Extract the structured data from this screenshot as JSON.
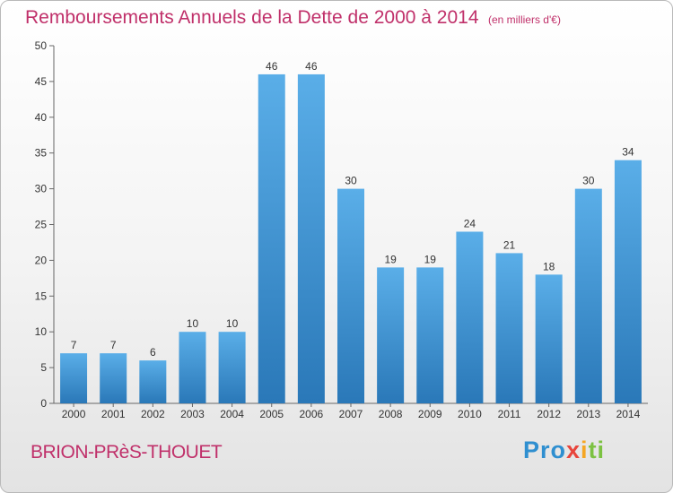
{
  "chart_data": {
    "type": "bar",
    "title": "Remboursements Annuels de la Dette de 2000 à 2014",
    "subtitle": "(en milliers d'€)",
    "categories": [
      "2000",
      "2001",
      "2002",
      "2003",
      "2004",
      "2005",
      "2006",
      "2007",
      "2008",
      "2009",
      "2010",
      "2011",
      "2012",
      "2013",
      "2014"
    ],
    "values": [
      7,
      7,
      6,
      10,
      10,
      46,
      46,
      30,
      19,
      19,
      24,
      21,
      18,
      30,
      34
    ],
    "ylim": [
      0,
      50
    ],
    "yticks": [
      0,
      5,
      10,
      15,
      20,
      25,
      30,
      35,
      40,
      45,
      50
    ],
    "grid": false,
    "bar_color_top": "#5aaee8",
    "bar_color_bottom": "#2a78b8"
  },
  "footer": {
    "commune": "BRION-PRèS-THOUET",
    "logo": {
      "p": "Pro",
      "x": "x",
      "i": "i",
      "ti": "ti"
    }
  }
}
